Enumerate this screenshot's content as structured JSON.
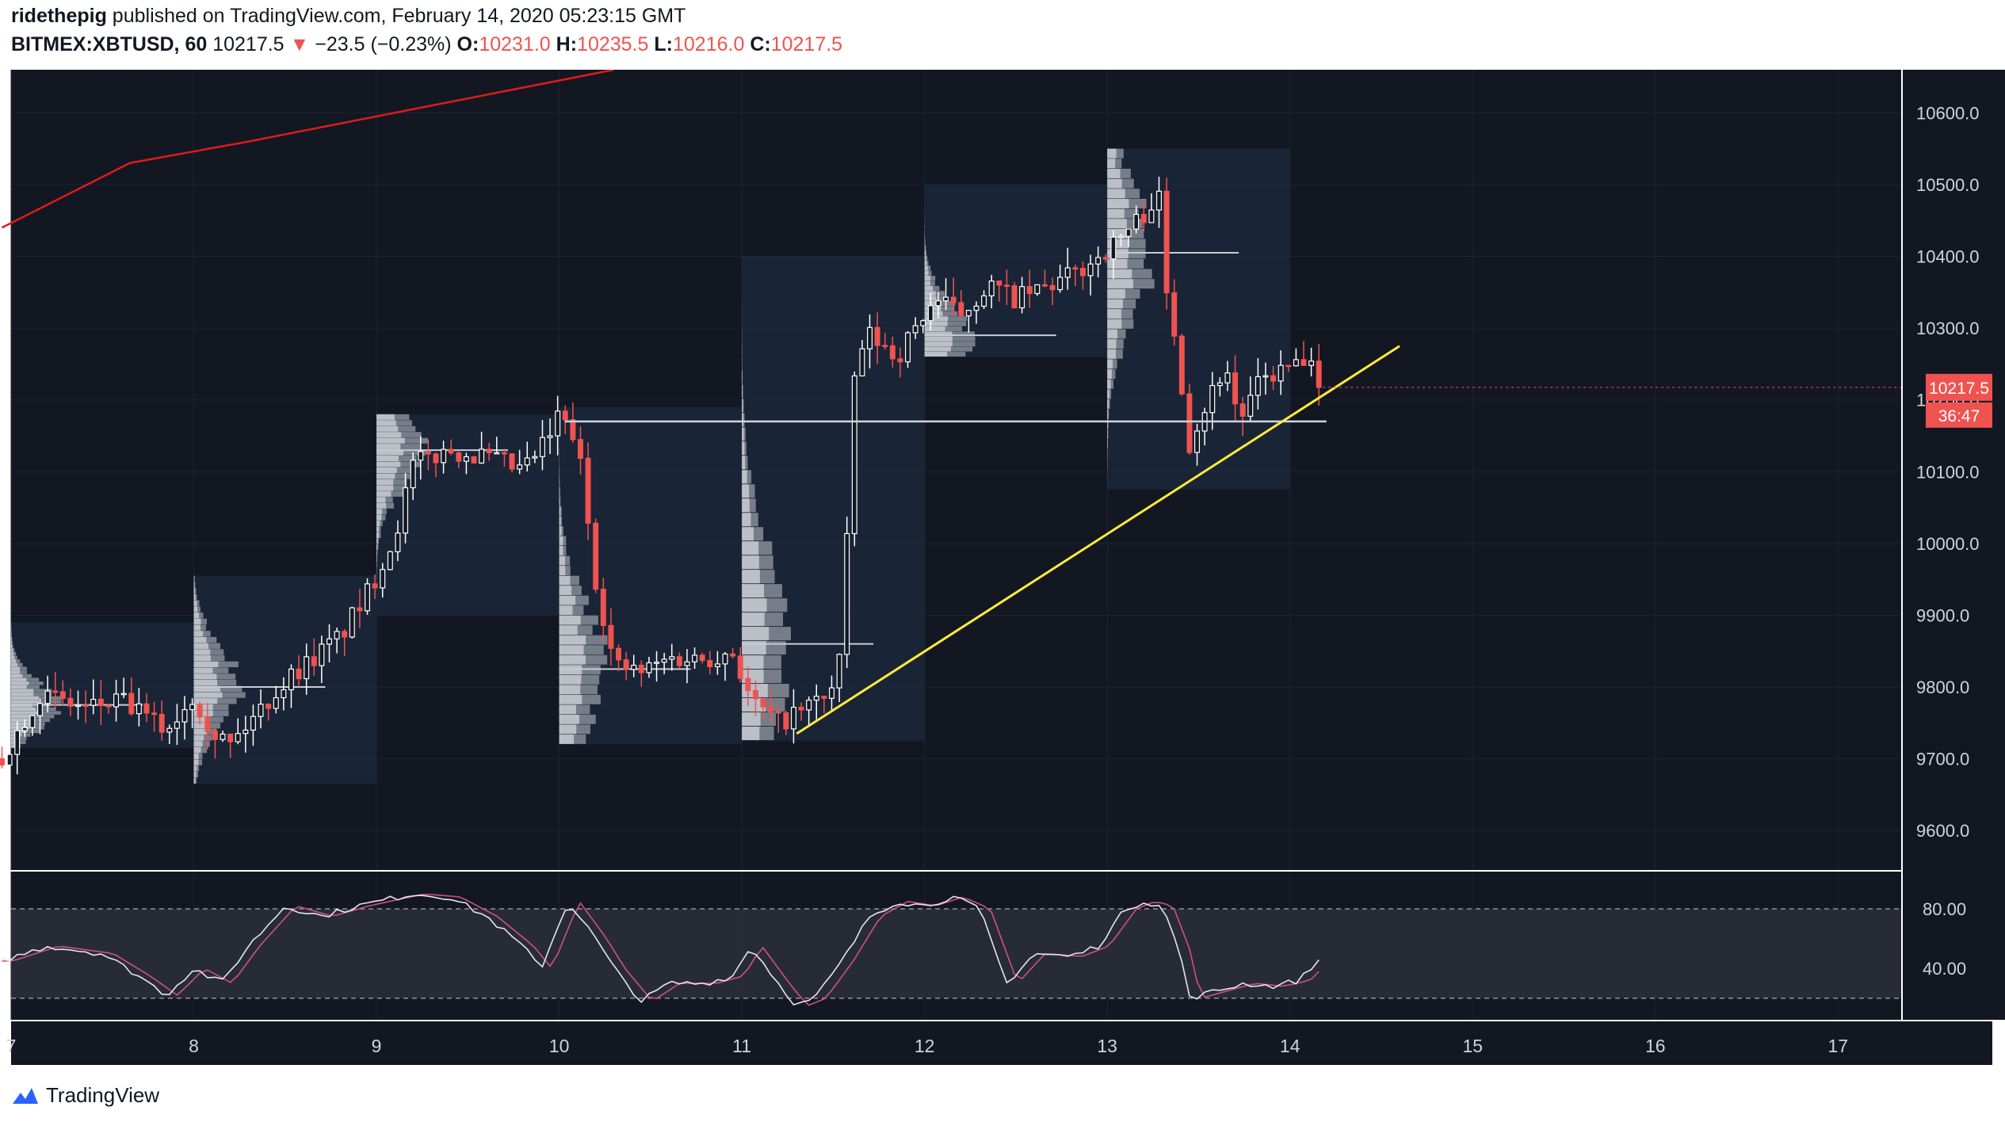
{
  "header": {
    "author": "ridethepig",
    "published_text": "published on TradingView.com, February 14, 2020 05:23:15 GMT",
    "symbol": "BITMEX:XBTUSD, 60",
    "last": "10217.5",
    "change_arrow": "▼",
    "change": "−23.5 (−0.23%)",
    "o_label": "O:",
    "o_value": "10231.0",
    "h_label": "H:",
    "h_value": "10235.5",
    "l_label": "L:",
    "l_value": "10216.0",
    "c_label": "C:",
    "c_value": "10217.5"
  },
  "price_badge": {
    "value": "10217.5",
    "countdown": "36:47"
  },
  "footer": {
    "brand": "TradingView",
    "logo_icon": "tradingview-logo-icon"
  },
  "colors": {
    "background": "#131722",
    "up": "#ffffff",
    "down": "#ef5350",
    "trendline": "#ffeb3b",
    "ma_line": "#e01b1b",
    "stoch_k": "#e6e6e6",
    "stoch_d": "#d0507f"
  },
  "chart_data": {
    "type": "candlestick",
    "price_axis": {
      "min": 9545,
      "max": 10660,
      "ticks": [
        "10600.0",
        "10500.0",
        "10400.0",
        "10300.0",
        "10200.0",
        "10100.0",
        "10000.0",
        "9900.0",
        "9800.0",
        "9700.0",
        "9600.0"
      ]
    },
    "time_axis": {
      "start_day": 7,
      "end_day": 17.35,
      "ticks": [
        "7",
        "8",
        "9",
        "10",
        "11",
        "12",
        "13",
        "14",
        "15",
        "16",
        "17"
      ]
    },
    "close_anchors_by_day": [
      [
        6.95,
        9700
      ],
      [
        7.15,
        9790
      ],
      [
        7.4,
        9770
      ],
      [
        7.6,
        9780
      ],
      [
        7.85,
        9740
      ],
      [
        8.0,
        9790
      ],
      [
        8.1,
        9740
      ],
      [
        8.2,
        9720
      ],
      [
        8.4,
        9780
      ],
      [
        8.55,
        9820
      ],
      [
        8.8,
        9870
      ],
      [
        8.95,
        9930
      ],
      [
        9.1,
        10010
      ],
      [
        9.2,
        10110
      ],
      [
        9.4,
        10130
      ],
      [
        9.6,
        10120
      ],
      [
        9.8,
        10100
      ],
      [
        9.95,
        10150
      ],
      [
        10.0,
        10180
      ],
      [
        10.1,
        10140
      ],
      [
        10.2,
        9950
      ],
      [
        10.3,
        9830
      ],
      [
        10.45,
        9820
      ],
      [
        10.6,
        9840
      ],
      [
        10.8,
        9840
      ],
      [
        10.95,
        9850
      ],
      [
        11.05,
        9780
      ],
      [
        11.2,
        9750
      ],
      [
        11.35,
        9770
      ],
      [
        11.5,
        9800
      ],
      [
        11.55,
        9860
      ],
      [
        11.62,
        10250
      ],
      [
        11.7,
        10290
      ],
      [
        11.85,
        10260
      ],
      [
        11.95,
        10300
      ],
      [
        12.05,
        10340
      ],
      [
        12.2,
        10320
      ],
      [
        12.35,
        10360
      ],
      [
        12.5,
        10340
      ],
      [
        12.7,
        10360
      ],
      [
        12.85,
        10380
      ],
      [
        13.05,
        10420
      ],
      [
        13.2,
        10460
      ],
      [
        13.28,
        10490
      ],
      [
        13.32,
        10350
      ],
      [
        13.38,
        10280
      ],
      [
        13.45,
        10140
      ],
      [
        13.55,
        10200
      ],
      [
        13.65,
        10250
      ],
      [
        13.72,
        10170
      ],
      [
        13.85,
        10230
      ],
      [
        13.95,
        10240
      ],
      [
        14.05,
        10250
      ],
      [
        14.12,
        10240
      ],
      [
        14.18,
        10217.5
      ]
    ],
    "last_close": 10217.5,
    "trendline": {
      "from": [
        11.3,
        9735
      ],
      "to": [
        14.6,
        10275
      ],
      "color": "#ffeb3b"
    },
    "horizontal_level": {
      "from_day": 10.03,
      "to_day": 14.2,
      "price": 10170
    },
    "sessions": [
      {
        "day_start": 7.0,
        "day_end": 8.0,
        "high": 9890,
        "low": 9715,
        "poc": 9775
      },
      {
        "day_start": 8.0,
        "day_end": 9.0,
        "high": 9955,
        "low": 9665,
        "poc": 9800
      },
      {
        "day_start": 9.0,
        "day_end": 10.0,
        "high": 10180,
        "low": 9900,
        "poc": 10130
      },
      {
        "day_start": 10.0,
        "day_end": 11.0,
        "high": 10190,
        "low": 9720,
        "poc": 9825
      },
      {
        "day_start": 11.0,
        "day_end": 12.0,
        "high": 10400,
        "low": 9725,
        "poc": 9860
      },
      {
        "day_start": 12.0,
        "day_end": 13.0,
        "high": 10500,
        "low": 10260,
        "poc": 10290
      },
      {
        "day_start": 13.0,
        "day_end": 14.0,
        "high": 10550,
        "low": 10075,
        "poc": 10405
      }
    ],
    "moving_average": [
      [
        6.95,
        10440
      ],
      [
        7.65,
        10530
      ],
      [
        8.3,
        10560
      ],
      [
        10.3,
        10660
      ]
    ],
    "stochastic": {
      "axis_ticks": [
        "80.00",
        "40.00"
      ],
      "upper_band": 80,
      "lower_band": 20,
      "min": 5,
      "max": 105,
      "k_anchors": [
        [
          6.95,
          45
        ],
        [
          7.2,
          55
        ],
        [
          7.5,
          50
        ],
        [
          7.7,
          35
        ],
        [
          7.85,
          22
        ],
        [
          8.0,
          40
        ],
        [
          8.15,
          30
        ],
        [
          8.3,
          55
        ],
        [
          8.5,
          82
        ],
        [
          8.7,
          75
        ],
        [
          8.9,
          82
        ],
        [
          9.2,
          90
        ],
        [
          9.4,
          88
        ],
        [
          9.6,
          75
        ],
        [
          9.8,
          55
        ],
        [
          9.9,
          40
        ],
        [
          10.05,
          85
        ],
        [
          10.2,
          60
        ],
        [
          10.3,
          40
        ],
        [
          10.45,
          18
        ],
        [
          10.6,
          30
        ],
        [
          10.8,
          30
        ],
        [
          10.95,
          35
        ],
        [
          11.05,
          55
        ],
        [
          11.2,
          30
        ],
        [
          11.3,
          15
        ],
        [
          11.4,
          20
        ],
        [
          11.55,
          45
        ],
        [
          11.7,
          75
        ],
        [
          11.85,
          85
        ],
        [
          12.0,
          82
        ],
        [
          12.15,
          88
        ],
        [
          12.3,
          80
        ],
        [
          12.45,
          30
        ],
        [
          12.6,
          50
        ],
        [
          12.8,
          48
        ],
        [
          12.95,
          55
        ],
        [
          13.1,
          80
        ],
        [
          13.2,
          85
        ],
        [
          13.3,
          82
        ],
        [
          13.4,
          50
        ],
        [
          13.45,
          20
        ],
        [
          13.6,
          25
        ],
        [
          13.75,
          30
        ],
        [
          13.9,
          28
        ],
        [
          14.05,
          32
        ],
        [
          14.18,
          48
        ]
      ]
    }
  }
}
